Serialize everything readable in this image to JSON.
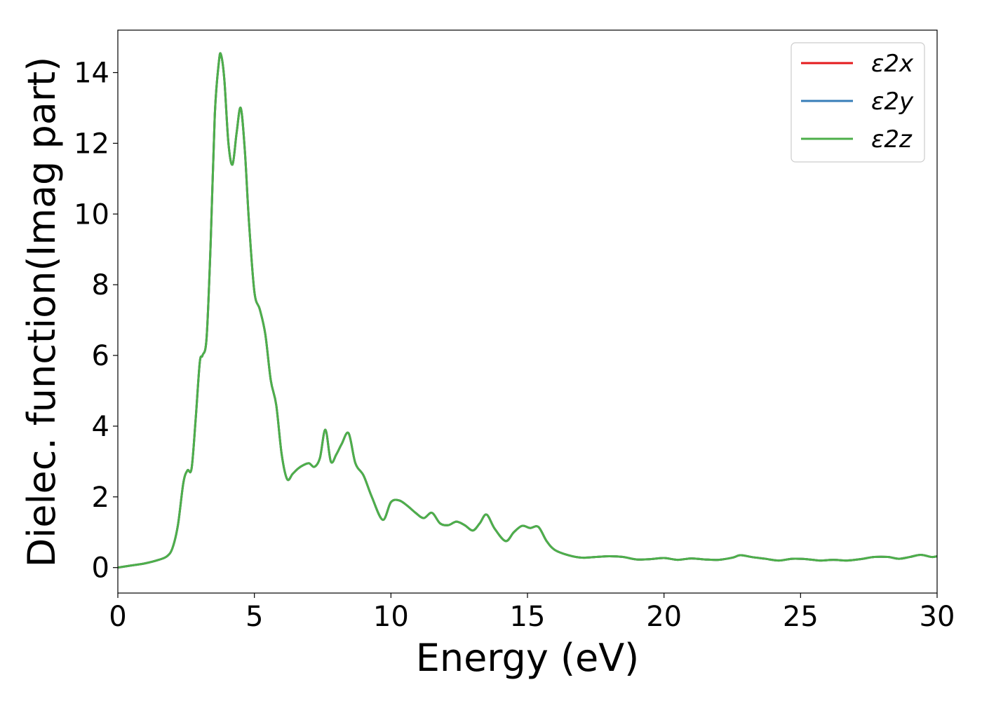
{
  "chart_data": {
    "type": "line",
    "xlabel": "Energy (eV)",
    "ylabel": "Dielec. function(Imag part)",
    "xlim": [
      0,
      30
    ],
    "ylim": [
      -0.72,
      15.2
    ],
    "xticks": [
      0,
      5,
      10,
      15,
      20,
      25,
      30
    ],
    "yticks": [
      0,
      2,
      4,
      6,
      8,
      10,
      12,
      14
    ],
    "grid": false,
    "legend_position": "top-right",
    "x": [
      0,
      0.5,
      1,
      1.5,
      1.8,
      2.0,
      2.2,
      2.4,
      2.55,
      2.7,
      2.85,
      3.0,
      3.1,
      3.25,
      3.4,
      3.55,
      3.7,
      3.78,
      3.9,
      4.05,
      4.2,
      4.35,
      4.5,
      4.65,
      4.8,
      5.0,
      5.2,
      5.4,
      5.6,
      5.8,
      6.0,
      6.2,
      6.4,
      6.6,
      6.8,
      7.0,
      7.2,
      7.4,
      7.6,
      7.8,
      8.0,
      8.2,
      8.45,
      8.7,
      9.0,
      9.3,
      9.7,
      10.0,
      10.3,
      10.6,
      10.9,
      11.2,
      11.5,
      11.8,
      12.1,
      12.4,
      12.7,
      13.0,
      13.25,
      13.5,
      13.8,
      14.2,
      14.5,
      14.8,
      15.1,
      15.4,
      15.7,
      16.0,
      16.5,
      17.0,
      17.5,
      18.0,
      18.5,
      19.0,
      19.5,
      20.0,
      20.5,
      21.0,
      21.5,
      22.0,
      22.5,
      22.8,
      23.2,
      23.7,
      24.2,
      24.7,
      25.2,
      25.7,
      26.2,
      26.7,
      27.2,
      27.7,
      28.2,
      28.6,
      29.0,
      29.4,
      29.8,
      30.0
    ],
    "series": [
      {
        "name": "ε2x",
        "color": "#e41a1c",
        "values": [
          0.0,
          0.06,
          0.12,
          0.22,
          0.32,
          0.55,
          1.2,
          2.4,
          2.75,
          2.8,
          4.2,
          5.8,
          6.0,
          6.5,
          9.2,
          12.8,
          14.3,
          14.5,
          13.8,
          12.0,
          11.4,
          12.3,
          13.0,
          11.8,
          9.8,
          7.8,
          7.3,
          6.6,
          5.3,
          4.6,
          3.2,
          2.5,
          2.65,
          2.8,
          2.9,
          2.95,
          2.85,
          3.1,
          3.9,
          3.0,
          3.2,
          3.5,
          3.8,
          2.95,
          2.6,
          2.0,
          1.35,
          1.85,
          1.9,
          1.75,
          1.55,
          1.4,
          1.55,
          1.25,
          1.2,
          1.3,
          1.2,
          1.05,
          1.25,
          1.5,
          1.1,
          0.75,
          1.0,
          1.18,
          1.12,
          1.15,
          0.75,
          0.5,
          0.35,
          0.28,
          0.3,
          0.32,
          0.3,
          0.23,
          0.24,
          0.27,
          0.22,
          0.26,
          0.23,
          0.22,
          0.28,
          0.35,
          0.3,
          0.25,
          0.2,
          0.25,
          0.24,
          0.2,
          0.22,
          0.2,
          0.24,
          0.3,
          0.3,
          0.25,
          0.3,
          0.36,
          0.3,
          0.32
        ]
      },
      {
        "name": "ε2y",
        "color": "#377eb8",
        "values": [
          0.0,
          0.06,
          0.12,
          0.22,
          0.32,
          0.55,
          1.2,
          2.4,
          2.75,
          2.8,
          4.2,
          5.8,
          6.0,
          6.5,
          9.2,
          12.8,
          14.3,
          14.5,
          13.8,
          12.0,
          11.4,
          12.3,
          13.0,
          11.8,
          9.8,
          7.8,
          7.3,
          6.6,
          5.3,
          4.6,
          3.2,
          2.5,
          2.65,
          2.8,
          2.9,
          2.95,
          2.85,
          3.1,
          3.9,
          3.0,
          3.2,
          3.5,
          3.8,
          2.95,
          2.6,
          2.0,
          1.35,
          1.85,
          1.9,
          1.75,
          1.55,
          1.4,
          1.55,
          1.25,
          1.2,
          1.3,
          1.2,
          1.05,
          1.25,
          1.5,
          1.1,
          0.75,
          1.0,
          1.18,
          1.12,
          1.15,
          0.75,
          0.5,
          0.35,
          0.28,
          0.3,
          0.32,
          0.3,
          0.23,
          0.24,
          0.27,
          0.22,
          0.26,
          0.23,
          0.22,
          0.28,
          0.35,
          0.3,
          0.25,
          0.2,
          0.25,
          0.24,
          0.2,
          0.22,
          0.2,
          0.24,
          0.3,
          0.3,
          0.25,
          0.3,
          0.36,
          0.3,
          0.32
        ]
      },
      {
        "name": "ε2z",
        "color": "#4daf4a",
        "values": [
          0.0,
          0.06,
          0.12,
          0.22,
          0.32,
          0.55,
          1.2,
          2.4,
          2.75,
          2.8,
          4.2,
          5.8,
          6.0,
          6.5,
          9.2,
          12.8,
          14.3,
          14.5,
          13.8,
          12.0,
          11.4,
          12.3,
          13.0,
          11.8,
          9.8,
          7.8,
          7.3,
          6.6,
          5.3,
          4.6,
          3.2,
          2.5,
          2.65,
          2.8,
          2.9,
          2.95,
          2.85,
          3.1,
          3.9,
          3.0,
          3.2,
          3.5,
          3.8,
          2.95,
          2.6,
          2.0,
          1.35,
          1.85,
          1.9,
          1.75,
          1.55,
          1.4,
          1.55,
          1.25,
          1.2,
          1.3,
          1.2,
          1.05,
          1.25,
          1.5,
          1.1,
          0.75,
          1.0,
          1.18,
          1.12,
          1.15,
          0.75,
          0.5,
          0.35,
          0.28,
          0.3,
          0.32,
          0.3,
          0.23,
          0.24,
          0.27,
          0.22,
          0.26,
          0.23,
          0.22,
          0.28,
          0.35,
          0.3,
          0.25,
          0.2,
          0.25,
          0.24,
          0.2,
          0.22,
          0.2,
          0.24,
          0.3,
          0.3,
          0.25,
          0.3,
          0.36,
          0.3,
          0.32
        ]
      }
    ]
  }
}
